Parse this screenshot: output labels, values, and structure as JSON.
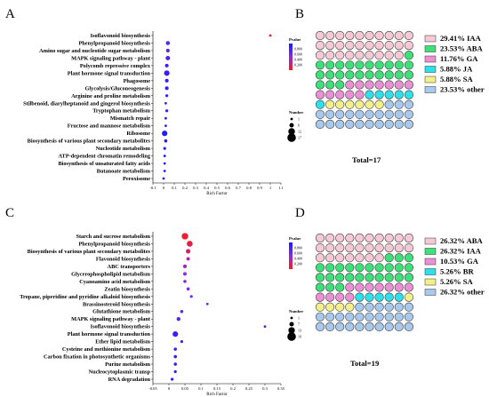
{
  "colors": {
    "low": "#1a1aff",
    "mid": "#8a2be2",
    "high": "#ff1a1a",
    "waffle_outline": "#3a3a3a",
    "waffle_empty": "#ffffff"
  },
  "panels": {
    "A": {
      "label": "A"
    },
    "B": {
      "label": "B"
    },
    "C": {
      "label": "C"
    },
    "D": {
      "label": "D"
    }
  },
  "chart_data": [
    {
      "id": "A",
      "type": "scatter",
      "subtype": "bubble-enrichment",
      "xlabel": "Rich Factor",
      "x_ticks": [
        "-0.1",
        "0",
        "0.1",
        "0.2",
        "0.3",
        "0.4",
        "0.5",
        "0.6",
        "0.7",
        "0.8",
        "0.9",
        "1",
        "1.1"
      ],
      "xlim": [
        -0.1,
        1.1
      ],
      "color_legend": {
        "title": "Pvalue",
        "ticks": [
          "0.800",
          "0.600",
          "0.400",
          "0.200"
        ],
        "range": [
          0,
          1
        ]
      },
      "size_legend": {
        "title": "Number",
        "values": [
          "1",
          "6",
          "12",
          "17"
        ],
        "range": [
          1,
          17
        ]
      },
      "points": [
        {
          "term": "Isoflavonoid biosynthesis",
          "x": 1.0,
          "number": 1,
          "p": 0.02
        },
        {
          "term": "Phenylpropanoid biosynthesis",
          "x": 0.04,
          "number": 5,
          "p": 0.75
        },
        {
          "term": "Amino sugar and nucleotide sugar metabolism",
          "x": 0.04,
          "number": 4,
          "p": 0.72
        },
        {
          "term": "MAPK signaling pathway - plant",
          "x": 0.04,
          "number": 6,
          "p": 0.78
        },
        {
          "term": "Polycomb repressive complex",
          "x": 0.03,
          "number": 4,
          "p": 0.82
        },
        {
          "term": "Plant hormone signal transduction",
          "x": 0.03,
          "number": 9,
          "p": 0.85
        },
        {
          "term": "Phagosome",
          "x": 0.03,
          "number": 4,
          "p": 0.85
        },
        {
          "term": "Glycolysis/Gluconeogenesis",
          "x": 0.03,
          "number": 4,
          "p": 0.86
        },
        {
          "term": "Arginine and proline metabolism",
          "x": 0.03,
          "number": 2,
          "p": 0.86
        },
        {
          "term": "Stilbenoid, diarylheptanoid and gingerol biosynthesis",
          "x": 0.02,
          "number": 1,
          "p": 0.88
        },
        {
          "term": "Tryptophan metabolism",
          "x": 0.03,
          "number": 2,
          "p": 0.88
        },
        {
          "term": "Mismatch repair",
          "x": 0.02,
          "number": 1,
          "p": 0.9
        },
        {
          "term": "Fructose and mannose metabolism",
          "x": 0.02,
          "number": 1,
          "p": 0.9
        },
        {
          "term": "Ribosome",
          "x": 0.01,
          "number": 9,
          "p": 0.95
        },
        {
          "term": "Biosynthesis of various plant secondary metabolites",
          "x": 0.02,
          "number": 3,
          "p": 0.92
        },
        {
          "term": "Nucleotide metabolism",
          "x": 0.01,
          "number": 2,
          "p": 0.95
        },
        {
          "term": "ATP-dependent chromatin remodeling",
          "x": 0.01,
          "number": 1,
          "p": 0.95
        },
        {
          "term": "Biosynthesis of unsaturated fatty acids",
          "x": 0.01,
          "number": 1,
          "p": 0.95
        },
        {
          "term": "Butanoate metabolism",
          "x": 0.01,
          "number": 1,
          "p": 0.95
        },
        {
          "term": "Peroxisome",
          "x": 0.0,
          "number": 1,
          "p": 0.97
        }
      ]
    },
    {
      "id": "B",
      "type": "waffle",
      "grid": {
        "rows": 10,
        "cols": 10
      },
      "total_label": "Total=17",
      "segments": [
        {
          "label": "29.41% IAA",
          "percent": 29.41,
          "color": "#f6c9d6"
        },
        {
          "label": "23.53% ABA",
          "percent": 23.53,
          "color": "#3ee07a"
        },
        {
          "label": "11.76% GA",
          "percent": 11.76,
          "color": "#ec90d6"
        },
        {
          "label": "5.88% JA",
          "percent": 5.88,
          "color": "#2de0ea"
        },
        {
          "label": "5.88% SA",
          "percent": 5.88,
          "color": "#f3f08a"
        },
        {
          "label": "23.53% other",
          "percent": 23.53,
          "color": "#a9c9ec"
        }
      ]
    },
    {
      "id": "C",
      "type": "scatter",
      "subtype": "bubble-enrichment",
      "xlabel": "Rich Factor",
      "x_ticks": [
        "-0.05",
        "0",
        "0.05",
        "0.1",
        "0.15",
        "0.2",
        "0.25",
        "0.3",
        "0.35"
      ],
      "xlim": [
        -0.05,
        0.35
      ],
      "color_legend": {
        "title": "Pvalue",
        "ticks": [
          "0.800",
          "0.600",
          "0.400",
          "0.200"
        ],
        "range": [
          0,
          1
        ]
      },
      "size_legend": {
        "title": "Number",
        "values": [
          "1",
          "7",
          "13",
          "19"
        ],
        "range": [
          1,
          19
        ]
      },
      "points": [
        {
          "term": "Starch and sucrose metabolism",
          "x": 0.05,
          "number": 13,
          "p": 0.05
        },
        {
          "term": "Phenylpropanoid biosynthesis",
          "x": 0.065,
          "number": 11,
          "p": 0.1
        },
        {
          "term": "Biosynthesis of various plant secondary metabolites",
          "x": 0.06,
          "number": 7,
          "p": 0.2
        },
        {
          "term": "Flavonoid biosynthesis",
          "x": 0.06,
          "number": 4,
          "p": 0.35
        },
        {
          "term": "ABC transporters",
          "x": 0.05,
          "number": 5,
          "p": 0.4
        },
        {
          "term": "Glycerophospholipid metabolism",
          "x": 0.05,
          "number": 4,
          "p": 0.5
        },
        {
          "term": "Cyanoamino acid metabolism",
          "x": 0.05,
          "number": 3,
          "p": 0.55
        },
        {
          "term": "Zeatin biosynthesis",
          "x": 0.06,
          "number": 3,
          "p": 0.55
        },
        {
          "term": "Tropane, piperidine and pyridine alkaloid biosynthesis",
          "x": 0.07,
          "number": 2,
          "p": 0.6
        },
        {
          "term": "Brassinosteroid biosynthesis",
          "x": 0.12,
          "number": 1,
          "p": 0.6
        },
        {
          "term": "Glutathione metabolism",
          "x": 0.04,
          "number": 3,
          "p": 0.7
        },
        {
          "term": "MAPK signaling pathway - plant",
          "x": 0.03,
          "number": 5,
          "p": 0.75
        },
        {
          "term": "Isoflavonoid biosynthesis",
          "x": 0.3,
          "number": 1,
          "p": 0.8
        },
        {
          "term": "Plant hormone signal transduction",
          "x": 0.02,
          "number": 10,
          "p": 0.85
        },
        {
          "term": "Ether lipid metabolism",
          "x": 0.04,
          "number": 2,
          "p": 0.85
        },
        {
          "term": "Cysteine and methionine metabolism",
          "x": 0.02,
          "number": 3,
          "p": 0.88
        },
        {
          "term": "Carbon fixation in photosynthetic organisms",
          "x": 0.02,
          "number": 3,
          "p": 0.9
        },
        {
          "term": "Purine metabolism",
          "x": 0.02,
          "number": 3,
          "p": 0.9
        },
        {
          "term": "Nucleocytoplasmic transp",
          "x": 0.02,
          "number": 2,
          "p": 0.92
        },
        {
          "term": "RNA degradation",
          "x": 0.01,
          "number": 2,
          "p": 0.95
        }
      ]
    },
    {
      "id": "D",
      "type": "waffle",
      "grid": {
        "rows": 10,
        "cols": 10
      },
      "total_label": "Total=19",
      "segments": [
        {
          "label": "26.32% ABA",
          "percent": 26.32,
          "color": "#f6c9d6"
        },
        {
          "label": "26.32% IAA",
          "percent": 26.32,
          "color": "#3ee07a"
        },
        {
          "label": "10.53% GA",
          "percent": 10.53,
          "color": "#ec90d6"
        },
        {
          "label": "5.26% BR",
          "percent": 5.26,
          "color": "#2de0ea"
        },
        {
          "label": "5.26% SA",
          "percent": 5.26,
          "color": "#f3f08a"
        },
        {
          "label": "26.32% other",
          "percent": 26.32,
          "color": "#a9c9ec"
        }
      ]
    }
  ]
}
